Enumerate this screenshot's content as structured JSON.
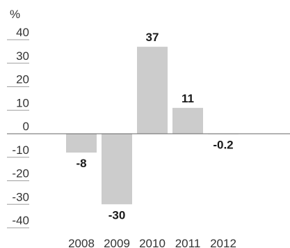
{
  "chart_data": {
    "type": "bar",
    "unit_label": "%",
    "categories": [
      "2008",
      "2009",
      "2010",
      "2011",
      "2012"
    ],
    "values": [
      -8,
      -30,
      37,
      11,
      -0.2
    ],
    "data_labels": [
      "-8",
      "-30",
      "37",
      "11",
      "-0.2"
    ],
    "yticks": [
      40,
      30,
      20,
      10,
      0,
      -10,
      -20,
      -30,
      -40
    ],
    "ylim": [
      -40,
      40
    ],
    "grid": true,
    "bar_color": "#cccccc",
    "title": "",
    "xlabel": "",
    "ylabel": ""
  }
}
